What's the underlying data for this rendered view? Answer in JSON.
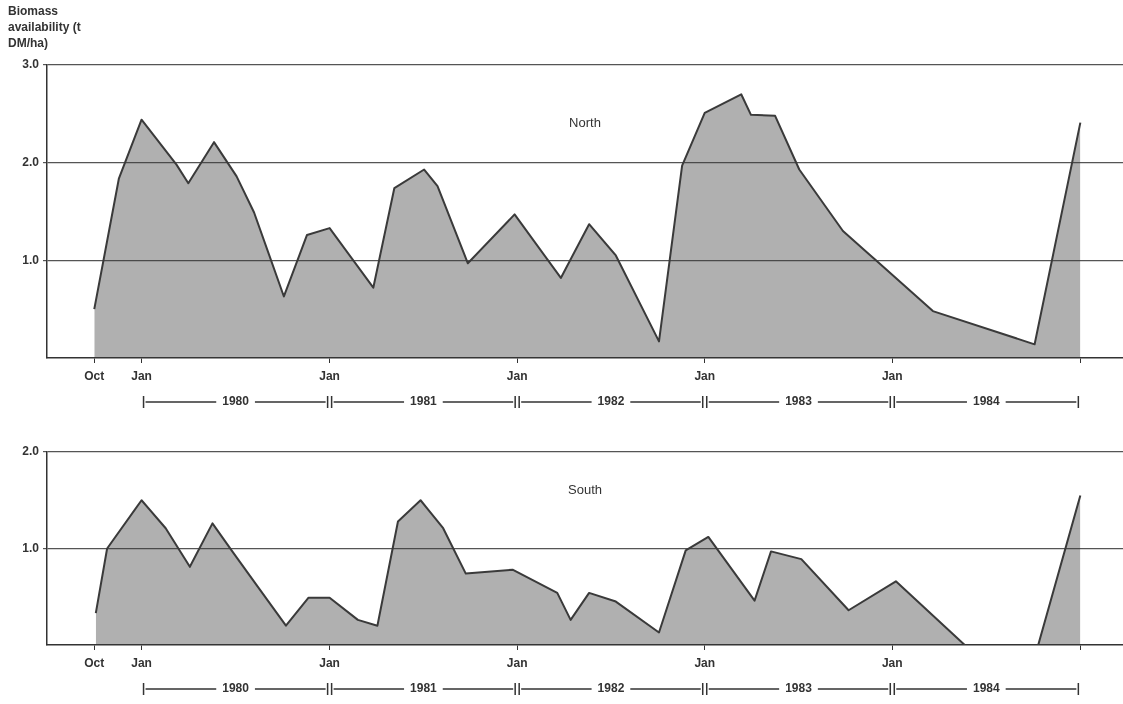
{
  "chart_data": [
    {
      "type": "area",
      "title": "North",
      "ylabel": "Biomass availability (t DM/ha)",
      "color": "#3a3a3a",
      "grid": "y",
      "x": [
        "1979-10-01",
        "1979-11-18",
        "1980-01-01",
        "1980-03-09",
        "1980-04-01",
        "1980-05-21",
        "1980-07-04",
        "1980-08-07",
        "1980-10-04",
        "1980-11-18",
        "1981-01-01",
        "1981-03-27",
        "1981-05-07",
        "1981-07-04",
        "1981-07-30",
        "1981-09-27",
        "1981-12-27",
        "1982-03-27",
        "1982-05-21",
        "1982-07-12",
        "1982-10-04",
        "1982-11-18",
        "1983-01-01",
        "1983-03-13",
        "1983-04-01",
        "1983-05-18",
        "1983-07-04",
        "1983-09-27",
        "1983-11-28",
        "1984-03-20",
        "1984-10-04",
        "1985-01-01"
      ],
      "values": [
        0.5,
        1.84,
        2.44,
        1.98,
        1.79,
        2.21,
        1.86,
        1.49,
        0.63,
        1.26,
        1.33,
        0.72,
        1.74,
        1.93,
        1.76,
        0.97,
        1.47,
        0.82,
        1.37,
        1.05,
        0.17,
        1.97,
        2.51,
        2.7,
        2.49,
        2.48,
        1.93,
        1.3,
        1.01,
        0.48,
        0.14,
        2.41
      ],
      "xlim": [
        "1979-07-01",
        "1985-03-25"
      ],
      "xticks": [
        {
          "value": "1979-10-01",
          "label": "Oct"
        },
        {
          "value": "1980-01-01",
          "label": "Jan"
        },
        {
          "value": "1981-01-01",
          "label": "Jan"
        },
        {
          "value": "1982-01-01",
          "label": "Jan"
        },
        {
          "value": "1983-01-01",
          "label": "Jan"
        },
        {
          "value": "1984-01-01",
          "label": "Jan"
        },
        {
          "value": "1985-01-01",
          "label": null
        }
      ],
      "ylim": [
        0,
        3
      ],
      "yticks": [
        {
          "value": 1,
          "label": "1.0"
        },
        {
          "value": 2,
          "label": "2.0"
        },
        {
          "value": 3,
          "label": "3.0"
        }
      ],
      "annotations": [
        "1980",
        "1981",
        "1982",
        "1983",
        "1984"
      ]
    },
    {
      "type": "area",
      "title": "South",
      "color": "#3a3a3a",
      "grid": "y",
      "x": [
        "1979-10-04",
        "1979-10-26",
        "1980-01-01",
        "1980-02-17",
        "1980-04-04",
        "1980-05-18",
        "1980-06-27",
        "1980-10-08",
        "1980-11-21",
        "1981-01-01",
        "1981-02-25",
        "1981-04-04",
        "1981-05-14",
        "1981-06-27",
        "1981-08-10",
        "1981-09-23",
        "1981-12-23",
        "1982-03-20",
        "1982-04-15",
        "1982-05-21",
        "1982-07-12",
        "1982-10-04",
        "1982-11-25",
        "1983-01-08",
        "1983-04-08",
        "1983-05-10",
        "1983-07-08",
        "1983-10-08",
        "1984-01-08",
        "1984-05-21",
        "1984-08-07",
        "1984-10-11",
        "1985-01-01"
      ],
      "values": [
        0.33,
        1.0,
        1.5,
        1.21,
        0.81,
        1.26,
        0.96,
        0.2,
        0.49,
        0.49,
        0.26,
        0.2,
        1.28,
        1.5,
        1.21,
        0.74,
        0.78,
        0.54,
        0.26,
        0.54,
        0.45,
        0.13,
        0.98,
        1.12,
        0.46,
        0.97,
        0.89,
        0.36,
        0.66,
        0.0,
        null,
        0.0,
        1.55
      ],
      "xlim": [
        "1979-07-01",
        "1985-03-25"
      ],
      "xticks": [
        {
          "value": "1979-10-01",
          "label": "Oct"
        },
        {
          "value": "1980-01-01",
          "label": "Jan"
        },
        {
          "value": "1981-01-01",
          "label": "Jan"
        },
        {
          "value": "1982-01-01",
          "label": "Jan"
        },
        {
          "value": "1983-01-01",
          "label": "Jan"
        },
        {
          "value": "1984-01-01",
          "label": "Jan"
        },
        {
          "value": "1985-01-01",
          "label": null
        }
      ],
      "ylim": [
        0,
        2
      ],
      "yticks": [
        {
          "value": 1,
          "label": "1.0"
        },
        {
          "value": 2,
          "label": "2.0"
        }
      ],
      "annotations": [
        "1980",
        "1981",
        "1982",
        "1983",
        "1984"
      ]
    }
  ]
}
